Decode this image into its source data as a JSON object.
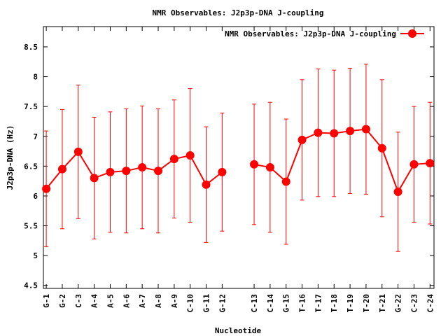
{
  "chart_data": {
    "type": "line",
    "title": "NMR Observables: J2p3p-DNA J-coupling",
    "xlabel": "Nucleotide",
    "ylabel": "J2p3p-DNA (Hz)",
    "ylim": [
      4.45,
      8.84
    ],
    "yticks": [
      "4.5",
      "5",
      "5.5",
      "6",
      "6.5",
      "7",
      "7.5",
      "8",
      "8.5"
    ],
    "ytick_values": [
      4.5,
      5,
      5.5,
      6,
      6.5,
      7,
      7.5,
      8,
      8.5
    ],
    "legend": {
      "label": "NMR Observables: J2p3p-DNA J-coupling",
      "placement": "top-right"
    },
    "color": "#ff0000",
    "series": [
      {
        "name": "NMR Observables: J2p3p-DNA J-coupling",
        "segments": [
          [
            {
              "label": "G-1",
              "x": 1,
              "y": 6.12,
              "err": 0.97
            },
            {
              "label": "G-2",
              "x": 2,
              "y": 6.45,
              "err": 1.0
            },
            {
              "label": "C-3",
              "x": 3,
              "y": 6.74,
              "err": 1.12
            },
            {
              "label": "A-4",
              "x": 4,
              "y": 6.3,
              "err": 1.02
            },
            {
              "label": "A-5",
              "x": 5,
              "y": 6.4,
              "err": 1.01
            },
            {
              "label": "A-6",
              "x": 6,
              "y": 6.42,
              "err": 1.04
            },
            {
              "label": "A-7",
              "x": 7,
              "y": 6.48,
              "err": 1.03
            },
            {
              "label": "A-8",
              "x": 8,
              "y": 6.42,
              "err": 1.04
            },
            {
              "label": "A-9",
              "x": 9,
              "y": 6.62,
              "err": 0.99
            },
            {
              "label": "C-10",
              "x": 10,
              "y": 6.68,
              "err": 1.12
            },
            {
              "label": "G-11",
              "x": 11,
              "y": 6.19,
              "err": 0.97
            },
            {
              "label": "G-12",
              "x": 12,
              "y": 6.4,
              "err": 0.99
            }
          ],
          [
            {
              "label": "C-13",
              "x": 14,
              "y": 6.53,
              "err": 1.01
            },
            {
              "label": "C-14",
              "x": 15,
              "y": 6.48,
              "err": 1.09
            },
            {
              "label": "G-15",
              "x": 16,
              "y": 6.24,
              "err": 1.05
            },
            {
              "label": "T-16",
              "x": 17,
              "y": 6.94,
              "err": 1.01
            },
            {
              "label": "T-17",
              "x": 18,
              "y": 7.06,
              "err": 1.07
            },
            {
              "label": "T-18",
              "x": 19,
              "y": 7.05,
              "err": 1.06
            },
            {
              "label": "T-19",
              "x": 20,
              "y": 7.09,
              "err": 1.05
            },
            {
              "label": "T-20",
              "x": 21,
              "y": 7.12,
              "err": 1.09
            },
            {
              "label": "T-21",
              "x": 22,
              "y": 6.8,
              "err": 1.15
            },
            {
              "label": "G-22",
              "x": 23,
              "y": 6.07,
              "err": 1.0
            },
            {
              "label": "C-23",
              "x": 24,
              "y": 6.53,
              "err": 0.97
            },
            {
              "label": "C-24",
              "x": 25,
              "y": 6.55,
              "err": 1.02
            }
          ]
        ]
      }
    ]
  }
}
